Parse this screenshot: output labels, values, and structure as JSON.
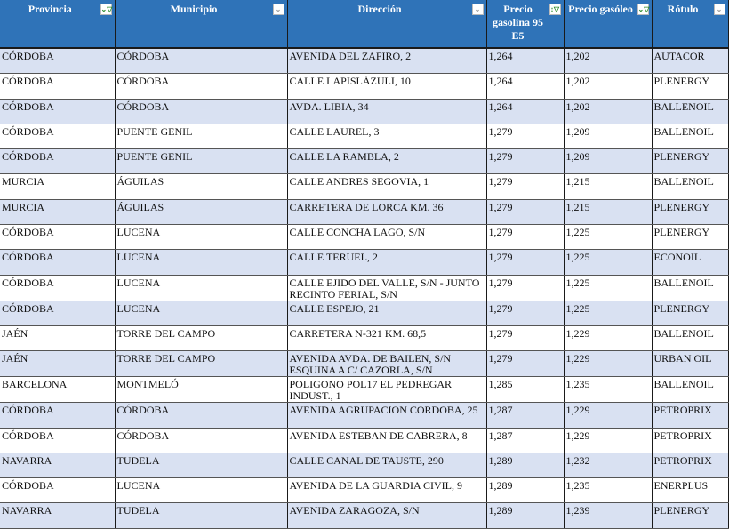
{
  "columns": [
    {
      "label": "Provincia",
      "filter": "filter-active"
    },
    {
      "label": "Municipio",
      "filter": "dropdown"
    },
    {
      "label": "Dirección",
      "filter": "dropdown"
    },
    {
      "label": "Precio gasolina 95 E5",
      "filter": "sort-filter-active"
    },
    {
      "label": "Precio gasóleo",
      "filter": "filter-active"
    },
    {
      "label": "Rótulo",
      "filter": "dropdown"
    }
  ],
  "filter_glyphs": {
    "dropdown": "⌄",
    "filter-active": "⌄▽",
    "sort-filter-active": "↕▽"
  },
  "colors": {
    "header": "#2f73b8",
    "band": "#d9e1f2"
  },
  "rows": [
    [
      "CÓRDOBA",
      "CÓRDOBA",
      "AVENIDA DEL ZAFIRO, 2",
      "1,264",
      "1,202",
      "AUTACOR"
    ],
    [
      "CÓRDOBA",
      "CÓRDOBA",
      "CALLE LAPISLÁZULI, 10",
      "1,264",
      "1,202",
      "PLENERGY"
    ],
    [
      "CÓRDOBA",
      "CÓRDOBA",
      "AVDA. LIBIA, 34",
      "1,264",
      "1,202",
      "BALLENOIL"
    ],
    [
      "CÓRDOBA",
      "PUENTE GENIL",
      "CALLE LAUREL, 3",
      "1,279",
      "1,209",
      "BALLENOIL"
    ],
    [
      "CÓRDOBA",
      "PUENTE GENIL",
      "CALLE LA RAMBLA, 2",
      "1,279",
      "1,209",
      "PLENERGY"
    ],
    [
      "MURCIA",
      "ÁGUILAS",
      "CALLE ANDRES SEGOVIA, 1",
      "1,279",
      "1,215",
      "BALLENOIL"
    ],
    [
      "MURCIA",
      "ÁGUILAS",
      "CARRETERA DE LORCA KM. 36",
      "1,279",
      "1,215",
      "PLENERGY"
    ],
    [
      "CÓRDOBA",
      "LUCENA",
      "CALLE CONCHA LAGO, S/N",
      "1,279",
      "1,225",
      "PLENERGY"
    ],
    [
      "CÓRDOBA",
      "LUCENA",
      "CALLE TERUEL, 2",
      "1,279",
      "1,225",
      "ECONOIL"
    ],
    [
      "CÓRDOBA",
      "LUCENA",
      "CALLE EJIDO DEL VALLE, S/N - JUNTO RECINTO FERIAL, S/N",
      "1,279",
      "1,225",
      "BALLENOIL"
    ],
    [
      "CÓRDOBA",
      "LUCENA",
      "CALLE ESPEJO, 21",
      "1,279",
      "1,225",
      "PLENERGY"
    ],
    [
      "JAÉN",
      "TORRE DEL CAMPO",
      "CARRETERA N-321 KM. 68,5",
      "1,279",
      "1,229",
      "BALLENOIL"
    ],
    [
      "JAÉN",
      "TORRE DEL CAMPO",
      "AVENIDA AVDA. DE BAILEN, S/N ESQUINA A C/ CAZORLA, S/N",
      "1,279",
      "1,229",
      "URBAN OIL"
    ],
    [
      "BARCELONA",
      "MONTMELÓ",
      "POLIGONO POL17 EL PEDREGAR INDUST., 1",
      "1,285",
      "1,235",
      "BALLENOIL"
    ],
    [
      "CÓRDOBA",
      "CÓRDOBA",
      "AVENIDA AGRUPACION CORDOBA, 25",
      "1,287",
      "1,229",
      "PETROPRIX"
    ],
    [
      "CÓRDOBA",
      "CÓRDOBA",
      "AVENIDA ESTEBAN DE CABRERA, 8",
      "1,287",
      "1,229",
      "PETROPRIX"
    ],
    [
      "NAVARRA",
      "TUDELA",
      "CALLE CANAL DE TAUSTE, 290",
      "1,289",
      "1,232",
      "PETROPRIX"
    ],
    [
      "CÓRDOBA",
      "LUCENA",
      "AVENIDA DE LA GUARDIA CIVIL, 9",
      "1,289",
      "1,235",
      "ENERPLUS"
    ],
    [
      "NAVARRA",
      "TUDELA",
      "AVENIDA ZARAGOZA, S/N",
      "1,289",
      "1,239",
      "PLENERGY"
    ]
  ]
}
